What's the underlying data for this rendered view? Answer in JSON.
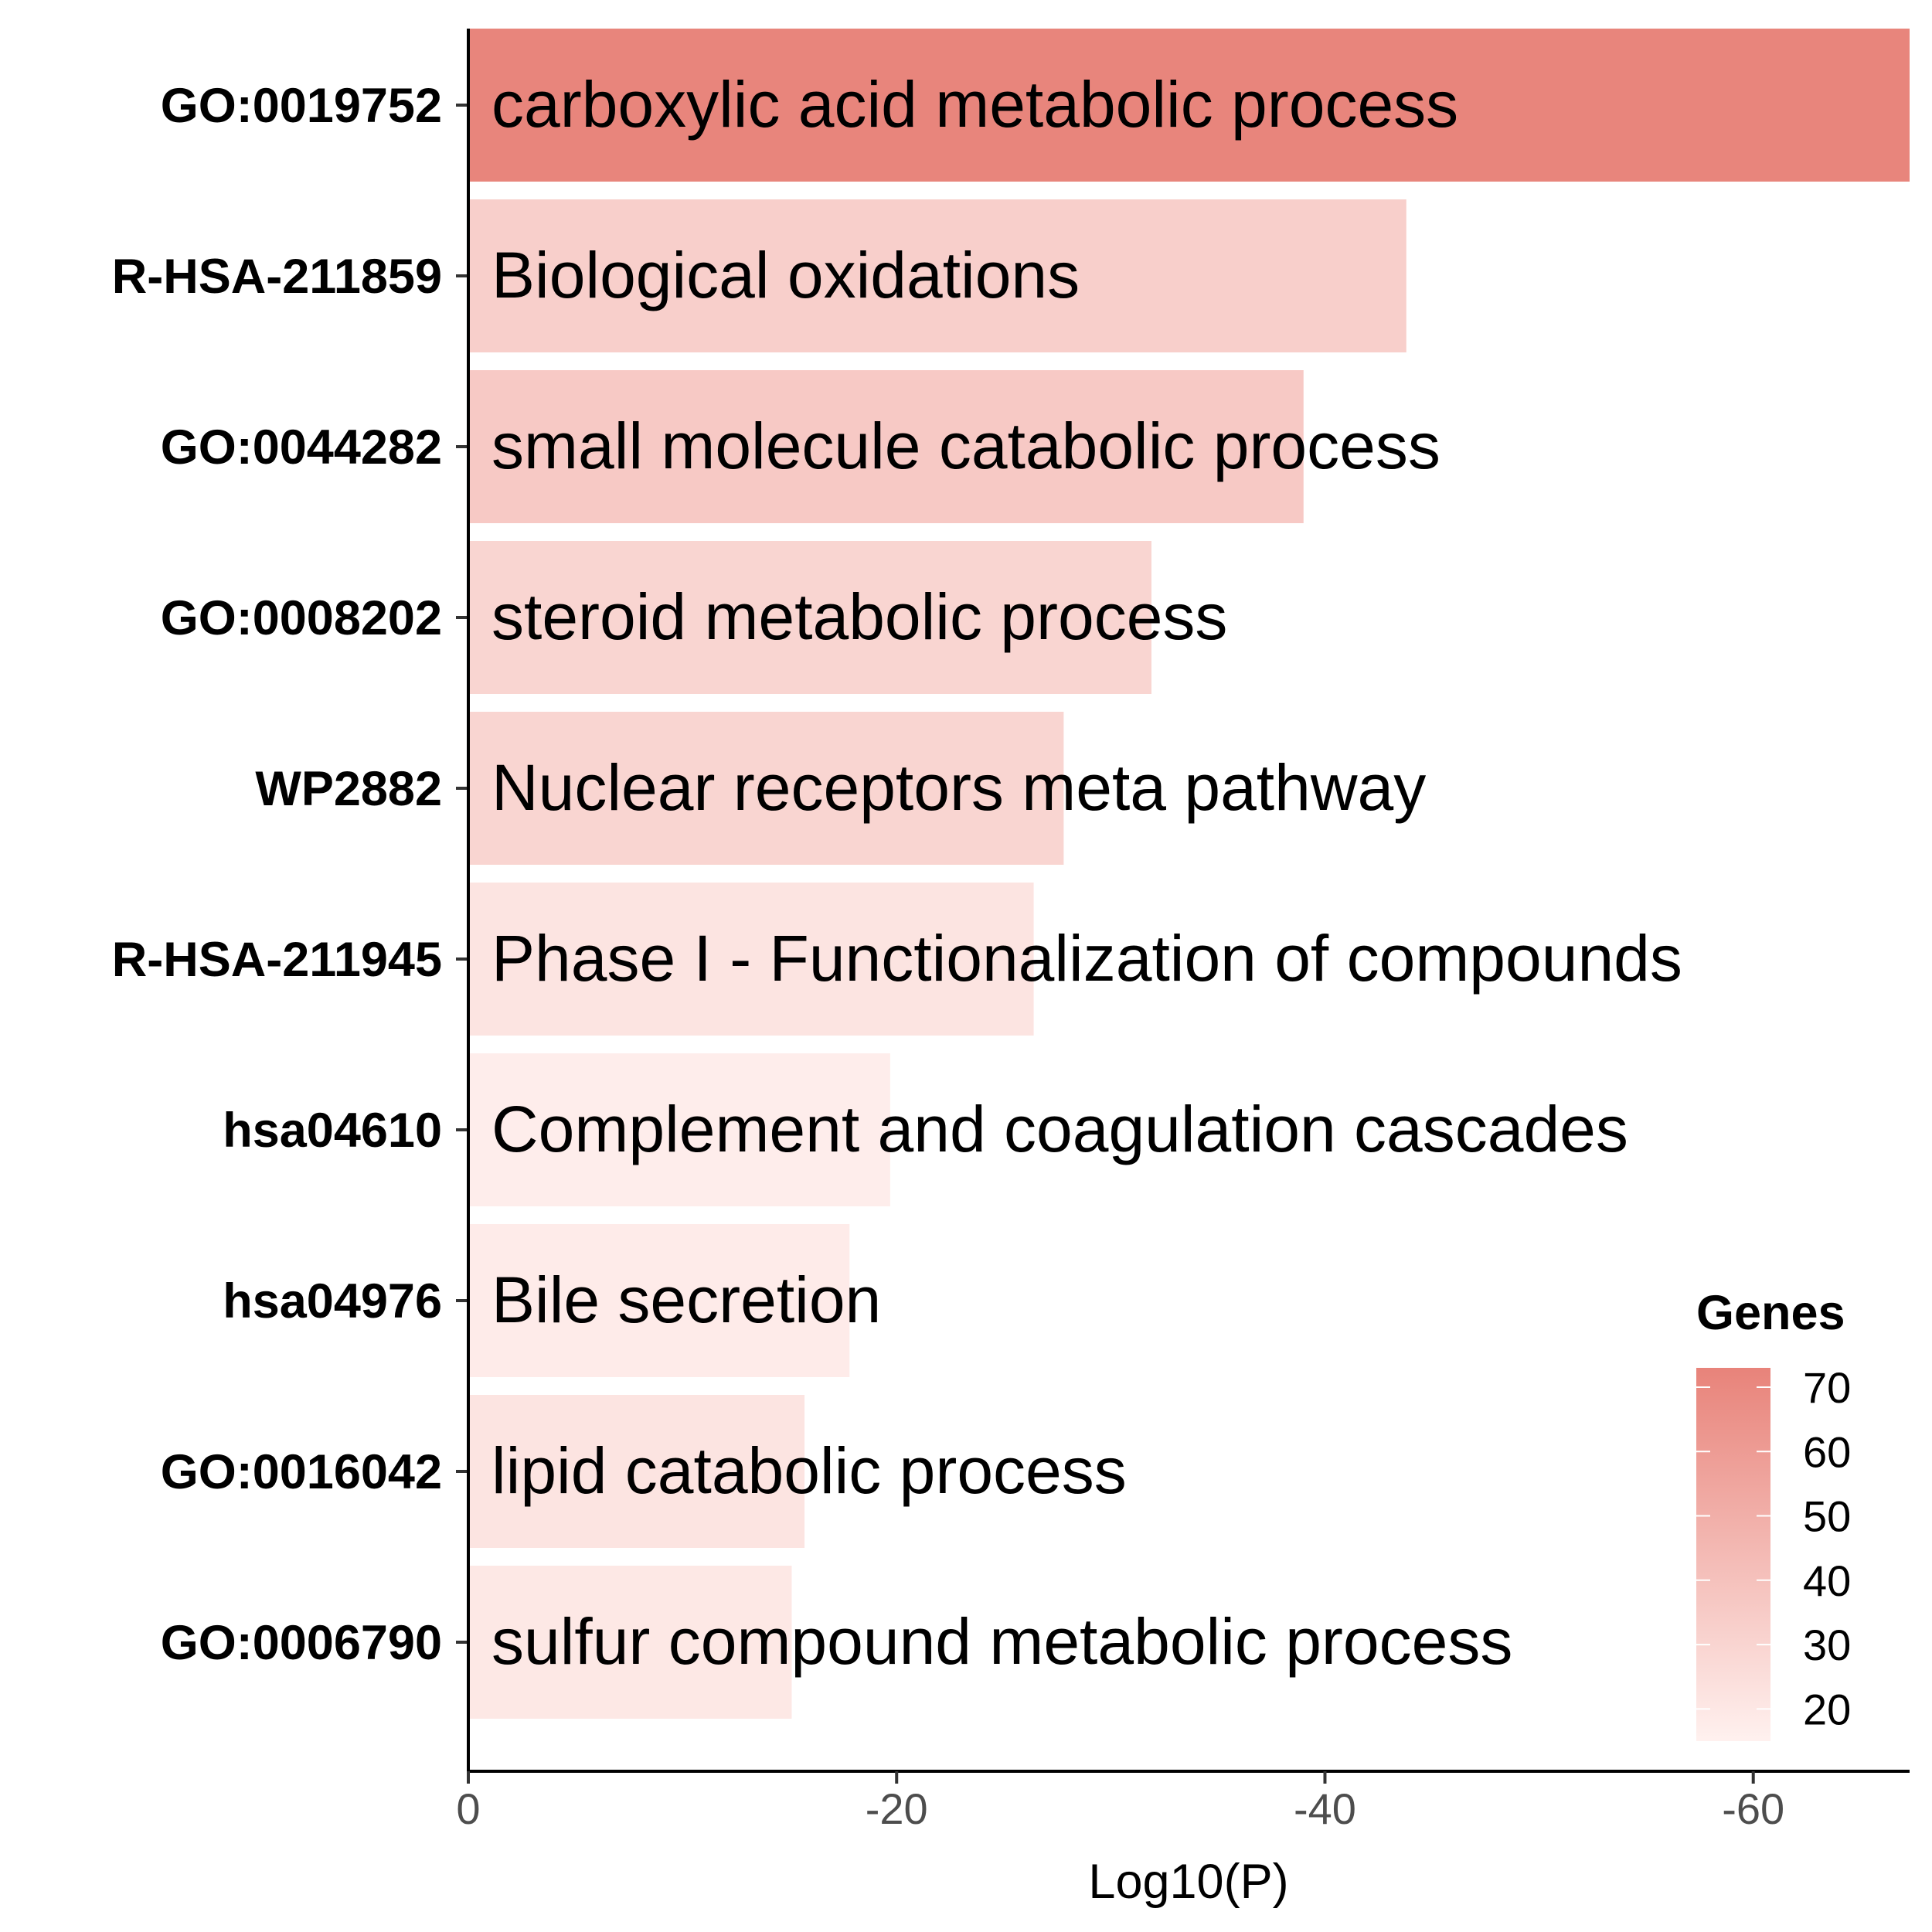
{
  "chart_data": {
    "type": "bar",
    "orientation": "horizontal",
    "title": "",
    "xlabel": "Log10(P)",
    "ylabel": "",
    "xlim": [
      0,
      -67.3
    ],
    "x_ticks": [
      0,
      -20,
      -40,
      -60
    ],
    "x_tick_labels": [
      "0",
      "-20",
      "-40",
      "-60"
    ],
    "grid": false,
    "categories": [
      "GO:0019752",
      "R-HSA-211859",
      "GO:0044282",
      "GO:0008202",
      "WP2882",
      "R-HSA-211945",
      "hsa04610",
      "hsa04976",
      "GO:0016042",
      "GO:0006790"
    ],
    "descriptions": [
      "carboxylic acid metabolic process",
      "Biological oxidations",
      "small molecule catabolic process",
      "steroid metabolic process",
      "Nuclear receptors meta pathway",
      "Phase I - Functionalization of compounds",
      "Complement and coagulation cascades",
      "Bile secretion",
      "lipid catabolic process",
      "sulfur compound metabolic process"
    ],
    "values": [
      -67.3,
      -43.8,
      -39.0,
      -31.9,
      -27.8,
      -26.4,
      -19.7,
      -17.8,
      -15.7,
      -15.1
    ],
    "genes": [
      72,
      33,
      36,
      30,
      30,
      22,
      17,
      18,
      22,
      20
    ],
    "legend": {
      "title": "Genes",
      "position": "bottom-right",
      "min": 15,
      "max": 73,
      "ticks": [
        70,
        60,
        50,
        40,
        30,
        20
      ],
      "tick_labels": [
        "70",
        "60",
        "50",
        "40",
        "30",
        "20"
      ],
      "color_low": "#FFF1EF",
      "color_high": "#E8837A"
    }
  }
}
